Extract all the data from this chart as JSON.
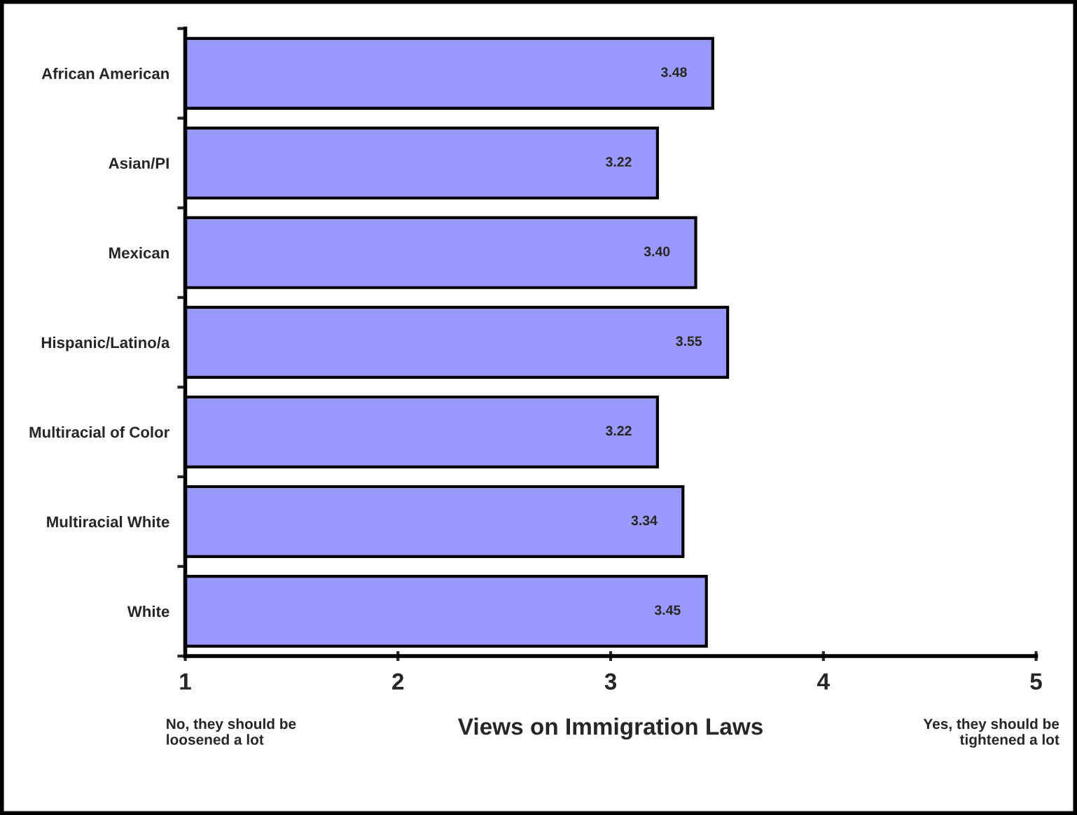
{
  "chart_data": {
    "type": "bar",
    "orientation": "horizontal",
    "xlabel": "Views on Immigration Laws",
    "categories": [
      "African American",
      "Asian/PI",
      "Mexican",
      "Hispanic/Latino/a",
      "Multiracial of Color",
      "Multiracial White",
      "White"
    ],
    "values": [
      3.48,
      3.22,
      3.4,
      3.55,
      3.22,
      3.34,
      3.45
    ],
    "color": "#9999ff",
    "data_labels": true,
    "value_labels": [
      "3.48",
      "3.22",
      "3.40",
      "3.55",
      "3.22",
      "3.34",
      "3.45"
    ],
    "xlim": [
      1,
      5
    ],
    "xticks": [
      1,
      2,
      3,
      4,
      5
    ],
    "grid": false,
    "annotations": [
      "No, they should be loosened a lot",
      "Yes, they should be tightened a lot"
    ]
  }
}
